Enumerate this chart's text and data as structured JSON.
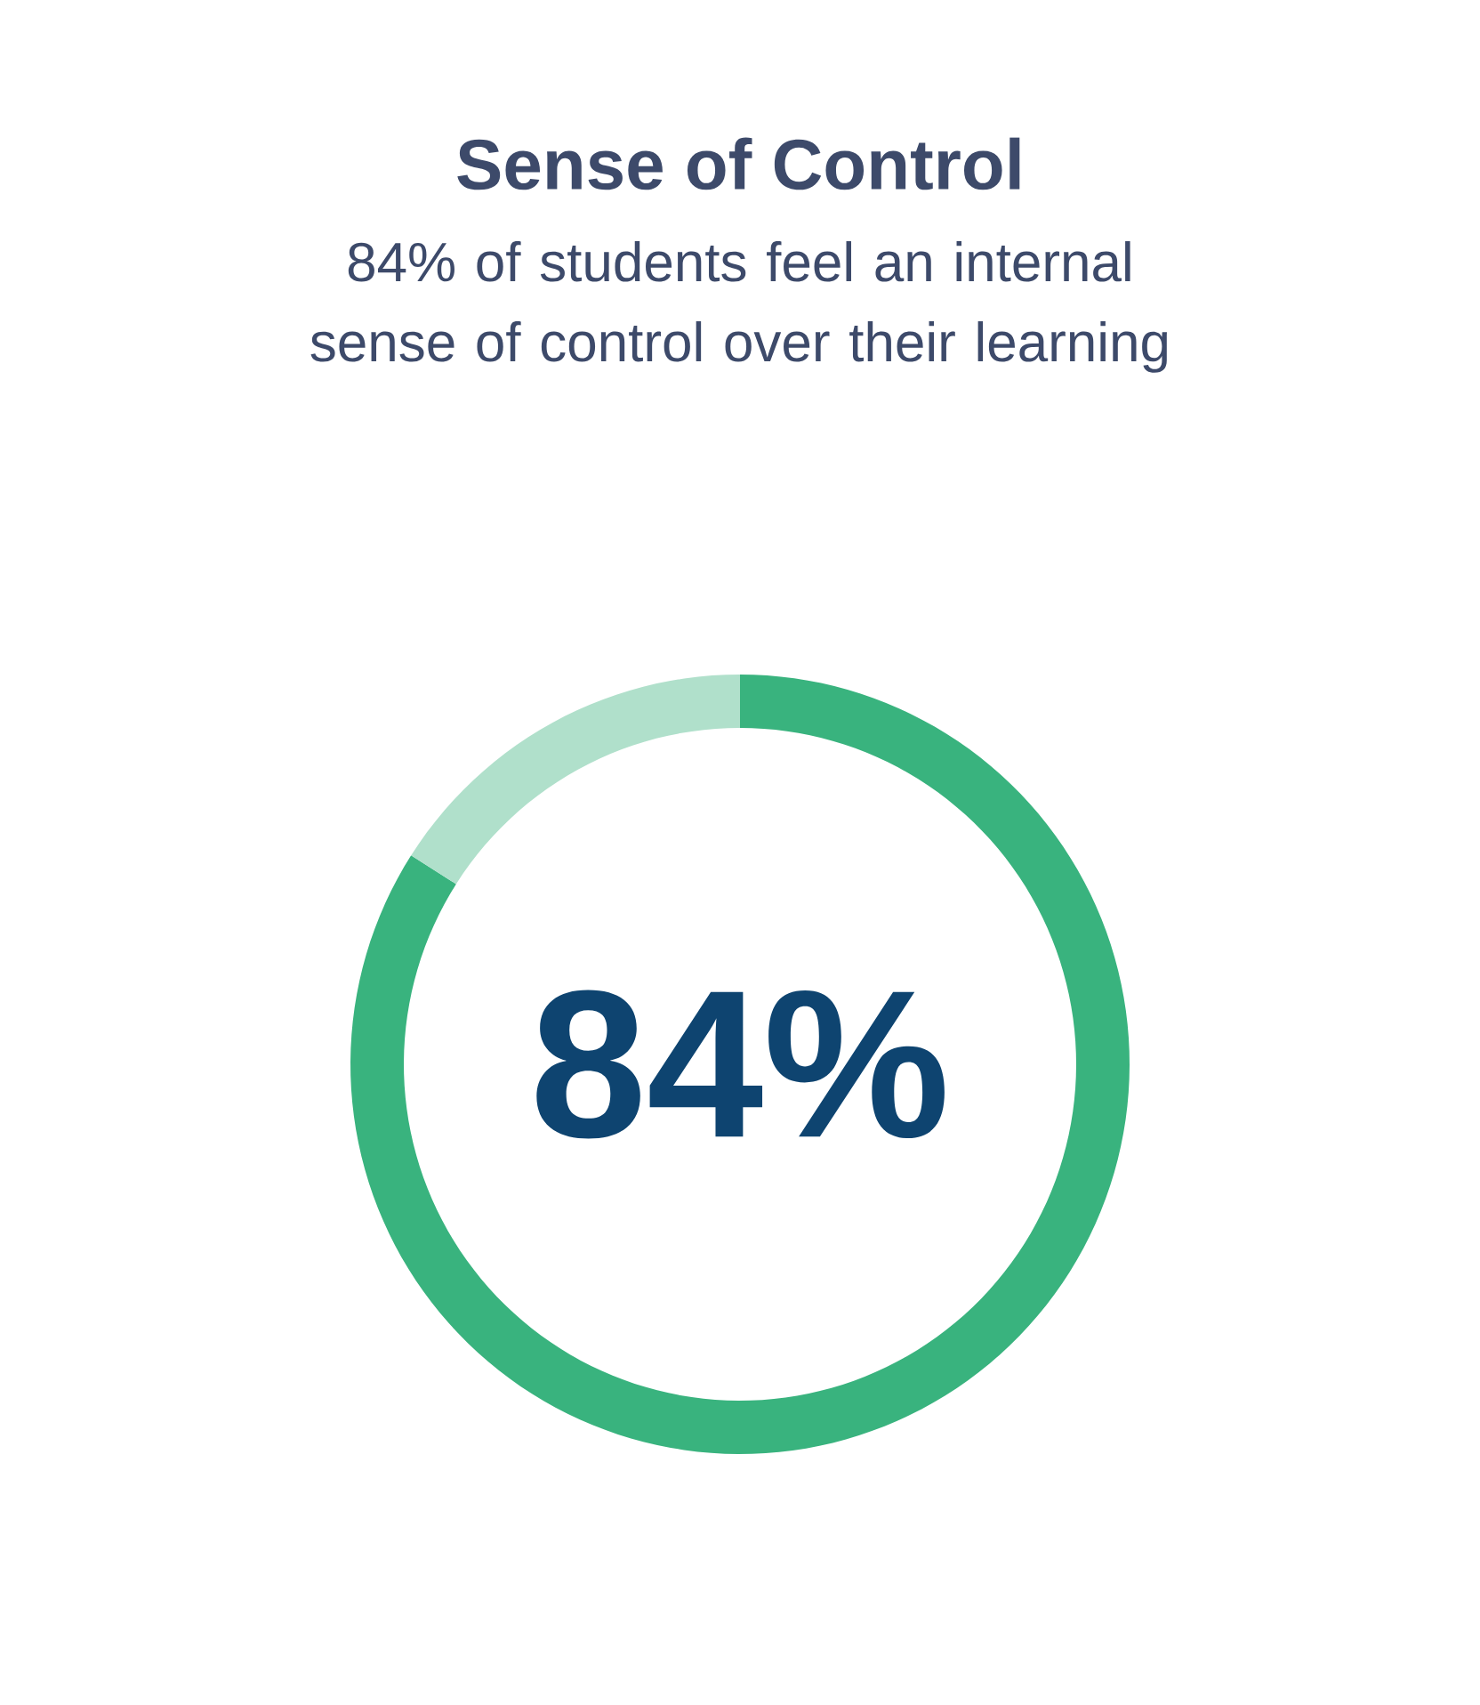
{
  "chart_data": {
    "type": "donut",
    "title": "Sense of Control",
    "subtitle": "84% of students feel an internal sense of control over their learning",
    "categories": [
      null,
      null
    ],
    "values": [
      84,
      16
    ],
    "colors": [
      "#39b37e",
      "#b0e0cb"
    ],
    "value_labels": [
      "84%",
      null
    ]
  }
}
